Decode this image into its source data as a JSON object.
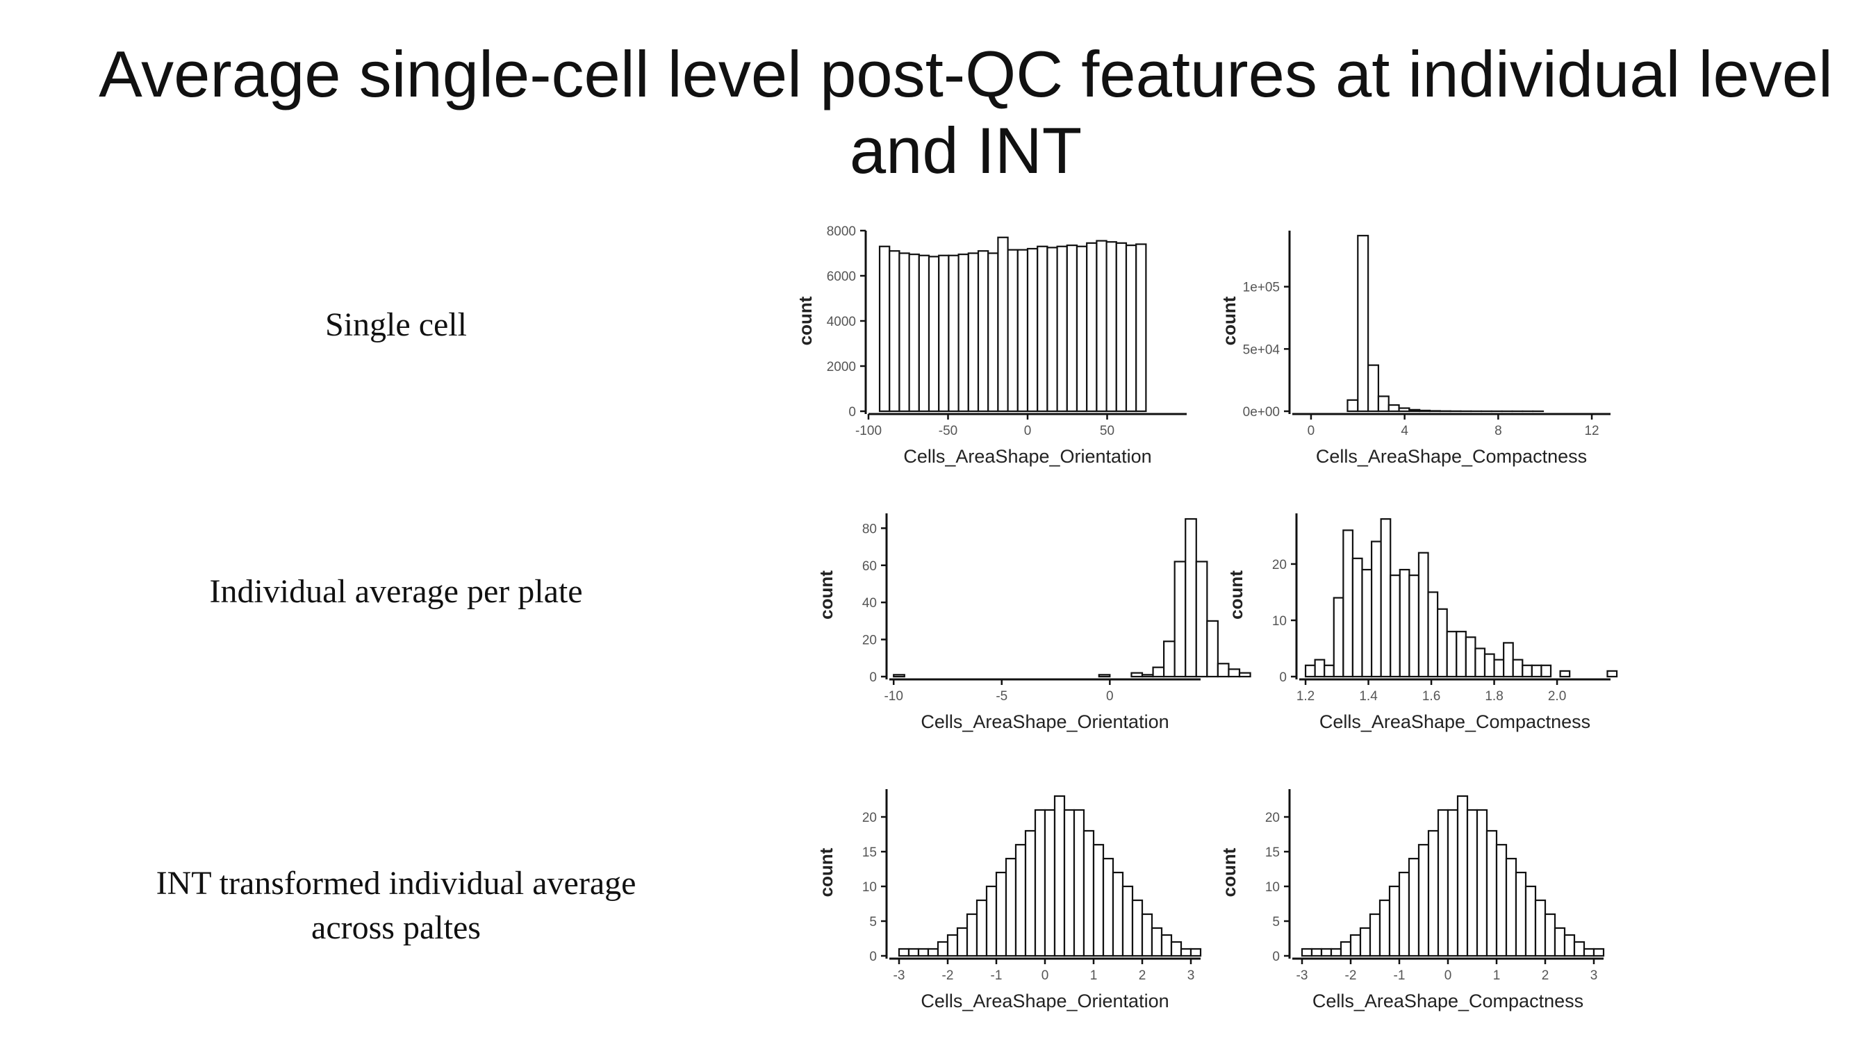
{
  "slide": {
    "title": "Average single-cell level post-QC features at individual level and INT",
    "row_labels": [
      "Single cell",
      "Individual average per plate",
      "INT transformed individual average across paltes"
    ]
  },
  "chart_data": [
    {
      "id": "sc-orientation",
      "type": "bar",
      "xlabel": "Cells_AreaShape_Orientation",
      "ylabel": "count",
      "xlim": [
        -100,
        100
      ],
      "ylim": [
        0,
        8000
      ],
      "xticks": [
        {
          "v": -100,
          "l": "-100"
        },
        {
          "v": -50,
          "l": "-50"
        },
        {
          "v": 0,
          "l": "0"
        },
        {
          "v": 50,
          "l": "50"
        }
      ],
      "yticks": [
        {
          "v": 0,
          "l": "0"
        },
        {
          "v": 2000,
          "l": "2000"
        },
        {
          "v": 4000,
          "l": "4000"
        },
        {
          "v": 6000,
          "l": "6000"
        },
        {
          "v": 8000,
          "l": "8000"
        }
      ],
      "bin_start": -93,
      "bin_width": 6.2,
      "values": [
        7300,
        7100,
        7000,
        6950,
        6900,
        6850,
        6900,
        6900,
        6950,
        7000,
        7100,
        7000,
        7700,
        7150,
        7150,
        7200,
        7300,
        7250,
        7300,
        7350,
        7300,
        7450,
        7550,
        7500,
        7450,
        7350,
        7400
      ]
    },
    {
      "id": "sc-compactness",
      "type": "bar",
      "xlabel": "Cells_AreaShape_Compactness",
      "ylabel": "count",
      "xlim": [
        -0.8,
        12.8
      ],
      "ylim": [
        0,
        145000
      ],
      "xticks": [
        {
          "v": 0,
          "l": "0"
        },
        {
          "v": 4,
          "l": "4"
        },
        {
          "v": 8,
          "l": "8"
        },
        {
          "v": 12,
          "l": "12"
        }
      ],
      "yticks": [
        {
          "v": 0,
          "l": "0e+00"
        },
        {
          "v": 50000,
          "l": "5e+04"
        },
        {
          "v": 100000,
          "l": "1e+05"
        }
      ],
      "bin_start": -0.2,
      "bin_width": 0.44,
      "values": [
        0,
        0,
        0,
        0,
        9000,
        141000,
        37000,
        12000,
        5000,
        2500,
        1200,
        600,
        300,
        150,
        80,
        40,
        20,
        10,
        5,
        3,
        2,
        1,
        1,
        0,
        0,
        0,
        0,
        0,
        0
      ]
    },
    {
      "id": "ind-orientation",
      "type": "bar",
      "xlabel": "Cells_AreaShape_Orientation",
      "ylabel": "count",
      "xlim": [
        -10.2,
        4.2
      ],
      "ylim": [
        0,
        88
      ],
      "xticks": [
        {
          "v": -10,
          "l": "-10"
        },
        {
          "v": -5,
          "l": "-5"
        },
        {
          "v": 0,
          "l": "0"
        }
      ],
      "yticks": [
        {
          "v": 0,
          "l": "0"
        },
        {
          "v": 20,
          "l": "20"
        },
        {
          "v": 40,
          "l": "40"
        },
        {
          "v": 60,
          "l": "60"
        },
        {
          "v": 80,
          "l": "80"
        }
      ],
      "bin_start": -10,
      "bin_width": 0.5,
      "values": [
        1,
        0,
        0,
        0,
        0,
        0,
        0,
        0,
        0,
        0,
        0,
        0,
        0,
        0,
        0,
        0,
        0,
        0,
        0,
        1,
        0,
        0,
        2,
        1,
        5,
        19,
        62,
        85,
        62,
        30,
        7,
        4,
        2
      ]
    },
    {
      "id": "ind-compactness",
      "type": "bar",
      "xlabel": "Cells_AreaShape_Compactness",
      "ylabel": "count",
      "xlim": [
        1.18,
        2.17
      ],
      "ylim": [
        0,
        29
      ],
      "xticks": [
        {
          "v": 1.2,
          "l": "1.2"
        },
        {
          "v": 1.4,
          "l": "1.4"
        },
        {
          "v": 1.6,
          "l": "1.6"
        },
        {
          "v": 1.8,
          "l": "1.8"
        },
        {
          "v": 2.0,
          "l": "2.0"
        }
      ],
      "yticks": [
        {
          "v": 0,
          "l": "0"
        },
        {
          "v": 10,
          "l": "10"
        },
        {
          "v": 20,
          "l": "20"
        }
      ],
      "bin_start": 1.2,
      "bin_width": 0.03,
      "values": [
        2,
        3,
        2,
        14,
        26,
        21,
        19,
        24,
        28,
        18,
        19,
        18,
        22,
        15,
        12,
        8,
        8,
        7,
        5,
        4,
        3,
        6,
        3,
        2,
        2,
        2,
        0,
        1,
        0,
        0,
        0,
        0,
        1
      ]
    },
    {
      "id": "int-orientation",
      "type": "bar",
      "xlabel": "Cells_AreaShape_Orientation",
      "ylabel": "count",
      "xlim": [
        -3.2,
        3.2
      ],
      "ylim": [
        0,
        24
      ],
      "xticks": [
        {
          "v": -3,
          "l": "-3"
        },
        {
          "v": -2,
          "l": "-2"
        },
        {
          "v": -1,
          "l": "-1"
        },
        {
          "v": 0,
          "l": "0"
        },
        {
          "v": 1,
          "l": "1"
        },
        {
          "v": 2,
          "l": "2"
        },
        {
          "v": 3,
          "l": "3"
        }
      ],
      "yticks": [
        {
          "v": 0,
          "l": "0"
        },
        {
          "v": 5,
          "l": "5"
        },
        {
          "v": 10,
          "l": "10"
        },
        {
          "v": 15,
          "l": "15"
        },
        {
          "v": 20,
          "l": "20"
        }
      ],
      "bin_start": -3,
      "bin_width": 0.2,
      "values": [
        1,
        1,
        1,
        1,
        2,
        3,
        4,
        6,
        8,
        10,
        12,
        14,
        16,
        18,
        21,
        21,
        23,
        21,
        21,
        18,
        16,
        14,
        12,
        10,
        8,
        6,
        4,
        3,
        2,
        1,
        1
      ]
    },
    {
      "id": "int-compactness",
      "type": "bar",
      "xlabel": "Cells_AreaShape_Compactness",
      "ylabel": "count",
      "xlim": [
        -3.2,
        3.2
      ],
      "ylim": [
        0,
        24
      ],
      "xticks": [
        {
          "v": -3,
          "l": "-3"
        },
        {
          "v": -2,
          "l": "-2"
        },
        {
          "v": -1,
          "l": "-1"
        },
        {
          "v": 0,
          "l": "0"
        },
        {
          "v": 1,
          "l": "1"
        },
        {
          "v": 2,
          "l": "2"
        },
        {
          "v": 3,
          "l": "3"
        }
      ],
      "yticks": [
        {
          "v": 0,
          "l": "0"
        },
        {
          "v": 5,
          "l": "5"
        },
        {
          "v": 10,
          "l": "10"
        },
        {
          "v": 15,
          "l": "15"
        },
        {
          "v": 20,
          "l": "20"
        }
      ],
      "bin_start": -3,
      "bin_width": 0.2,
      "values": [
        1,
        1,
        1,
        1,
        2,
        3,
        4,
        6,
        8,
        10,
        12,
        14,
        16,
        18,
        21,
        21,
        23,
        21,
        21,
        18,
        16,
        14,
        12,
        10,
        8,
        6,
        4,
        3,
        2,
        1,
        1
      ]
    }
  ]
}
